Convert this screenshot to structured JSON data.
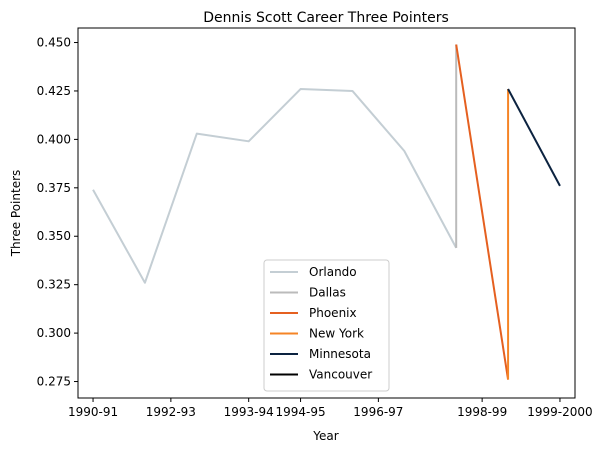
{
  "chart_data": {
    "type": "line",
    "title": "Dennis Scott  Career Three Pointers",
    "xlabel": "Year",
    "ylabel": "Three Pointers",
    "x_tick_labels": [
      "1990-91",
      "1992-93",
      "1993-94",
      "1994-95",
      "1996-97",
      "1998-99",
      "1999-2000"
    ],
    "y_ticks": [
      0.275,
      0.3,
      0.325,
      0.35,
      0.375,
      0.4,
      0.425,
      0.45
    ],
    "y_tick_labels": [
      "0.275",
      "0.300",
      "0.325",
      "0.350",
      "0.375",
      "0.400",
      "0.425",
      "0.450"
    ],
    "xlim": [
      1990.71,
      2000.29
    ],
    "ylim": [
      0.2665,
      0.4575
    ],
    "legend_position": "lower center",
    "grid": false,
    "series": [
      {
        "name": "Orlando",
        "color": "#c4ced4",
        "x": [
          1991,
          1992,
          1993,
          1994,
          1995,
          1996,
          1997,
          1998
        ],
        "y": [
          0.374,
          0.326,
          0.403,
          0.399,
          0.426,
          0.425,
          0.394,
          0.344
        ]
      },
      {
        "name": "Dallas",
        "color": "#bbbbbb",
        "x": [
          1998,
          1998
        ],
        "y": [
          0.344,
          0.449
        ]
      },
      {
        "name": "Phoenix",
        "color": "#e56020",
        "x": [
          1998,
          1999
        ],
        "y": [
          0.449,
          0.276
        ]
      },
      {
        "name": "New York",
        "color": "#f58426",
        "x": [
          1999,
          1999
        ],
        "y": [
          0.276,
          0.426
        ]
      },
      {
        "name": "Minnesota",
        "color": "#0c2340",
        "x": [
          1999,
          2000
        ],
        "y": [
          0.426,
          0.376
        ]
      },
      {
        "name": "Vancouver",
        "color": "#000000",
        "x": [],
        "y": []
      }
    ]
  }
}
